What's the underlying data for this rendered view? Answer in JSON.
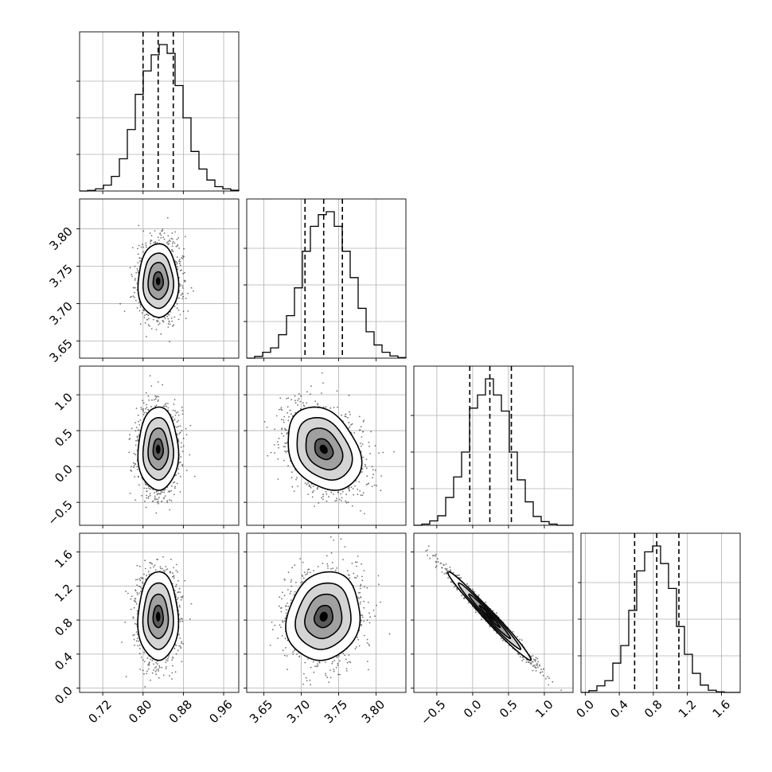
{
  "chart_data": {
    "type": "corner",
    "parameters": [
      {
        "index": 0,
        "range": [
          0.674,
          0.99
        ],
        "median": 0.83,
        "quantiles": [
          0.8,
          0.83,
          0.86
        ],
        "ticks": [
          0.72,
          0.8,
          0.88,
          0.96
        ],
        "tick_labels": [
          "0.72",
          "0.80",
          "0.88",
          "0.96"
        ],
        "hist_max": 1.0,
        "hist": [
          0.0,
          0.004,
          0.015,
          0.04,
          0.1,
          0.22,
          0.42,
          0.66,
          0.82,
          0.93,
          1.0,
          0.94,
          0.72,
          0.5,
          0.27,
          0.15,
          0.075,
          0.03,
          0.015,
          0.005
        ]
      },
      {
        "index": 1,
        "range": [
          3.627,
          3.84
        ],
        "median": 3.73,
        "quantiles": [
          3.705,
          3.73,
          3.755
        ],
        "ticks": [
          3.65,
          3.7,
          3.75,
          3.8
        ],
        "tick_labels": [
          "3.65",
          "3.70",
          "3.75",
          "3.80"
        ],
        "hist_max": 1.0,
        "hist": [
          0.0,
          0.012,
          0.04,
          0.07,
          0.16,
          0.29,
          0.48,
          0.73,
          0.9,
          0.98,
          1.0,
          0.9,
          0.73,
          0.55,
          0.34,
          0.18,
          0.09,
          0.04,
          0.015,
          0.004
        ]
      },
      {
        "index": 2,
        "range": [
          -0.82,
          1.4
        ],
        "median": 0.24,
        "quantiles": [
          -0.04,
          0.24,
          0.54
        ],
        "ticks": [
          -0.5,
          0.0,
          0.5,
          1.0
        ],
        "tick_labels": [
          "−0.5",
          "0.0",
          "0.5",
          "1.0"
        ],
        "hist_max": 1.0,
        "hist": [
          0.0,
          0.008,
          0.03,
          0.065,
          0.19,
          0.33,
          0.5,
          0.8,
          0.89,
          1.0,
          0.89,
          0.78,
          0.5,
          0.31,
          0.16,
          0.06,
          0.025,
          0.008,
          0.0,
          0.0
        ]
      },
      {
        "index": 3,
        "range": [
          -0.05,
          1.82
        ],
        "median": 0.84,
        "quantiles": [
          0.58,
          0.84,
          1.1
        ],
        "ticks": [
          0.0,
          0.4,
          0.8,
          1.2,
          1.6
        ],
        "tick_labels": [
          "0.0",
          "0.4",
          "0.8",
          "1.2",
          "1.6"
        ],
        "hist_max": 1.0,
        "hist": [
          0.0,
          0.012,
          0.045,
          0.08,
          0.2,
          0.32,
          0.56,
          0.83,
          0.96,
          1.0,
          0.88,
          0.71,
          0.45,
          0.26,
          0.13,
          0.05,
          0.015,
          0.004,
          0.0,
          0.0
        ]
      }
    ],
    "pairs": [
      {
        "x": 0,
        "y": 1,
        "center": [
          0.83,
          3.73
        ],
        "sd": [
          0.02,
          0.0246
        ],
        "rho": 0.0
      },
      {
        "x": 0,
        "y": 2,
        "center": [
          0.83,
          0.24
        ],
        "sd": [
          0.02,
          0.29
        ],
        "rho": 0.0
      },
      {
        "x": 1,
        "y": 2,
        "center": [
          3.73,
          0.24
        ],
        "sd": [
          0.0246,
          0.29
        ],
        "rho": -0.28
      },
      {
        "x": 0,
        "y": 3,
        "center": [
          0.83,
          0.84
        ],
        "sd": [
          0.02,
          0.26
        ],
        "rho": 0.0
      },
      {
        "x": 1,
        "y": 3,
        "center": [
          3.73,
          0.84
        ],
        "sd": [
          0.0246,
          0.26
        ],
        "rho": 0.12
      },
      {
        "x": 2,
        "y": 3,
        "center": [
          0.24,
          0.84
        ],
        "sd": [
          0.29,
          0.26
        ],
        "rho": -0.985
      }
    ],
    "grid": true,
    "colors": {
      "line": "#000000",
      "grid": "#b0b0b0",
      "points": "#000000"
    }
  }
}
